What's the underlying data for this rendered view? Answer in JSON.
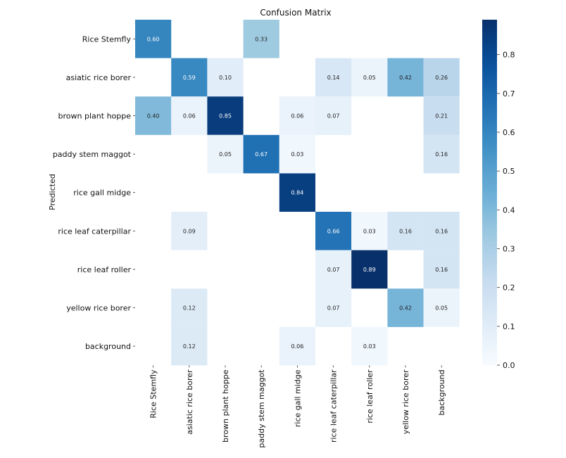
{
  "chart_data": {
    "type": "heatmap",
    "title": "Confusion Matrix",
    "xlabel": "",
    "ylabel": "Predicted",
    "x_categories": [
      "Rice Stemfly",
      "asiatic rice borer",
      "brown plant hoppe",
      "paddy stem maggot",
      "rice gall midge",
      "rice leaf caterpillar",
      "rice leaf roller",
      "yellow rice borer",
      "background"
    ],
    "y_categories": [
      "Rice Stemfly",
      "asiatic rice borer",
      "brown plant hoppe",
      "paddy stem maggot",
      "rice gall midge",
      "rice leaf caterpillar",
      "rice leaf roller",
      "yellow rice borer",
      "background"
    ],
    "values": [
      [
        0.6,
        null,
        null,
        0.33,
        null,
        null,
        null,
        null,
        null
      ],
      [
        null,
        0.59,
        0.1,
        null,
        null,
        0.14,
        0.05,
        0.42,
        0.26
      ],
      [
        0.4,
        0.06,
        0.85,
        null,
        0.06,
        0.07,
        null,
        null,
        0.21
      ],
      [
        null,
        null,
        0.05,
        0.67,
        0.03,
        null,
        null,
        null,
        0.16
      ],
      [
        null,
        null,
        null,
        null,
        0.84,
        null,
        null,
        null,
        null
      ],
      [
        null,
        0.09,
        null,
        null,
        null,
        0.66,
        0.03,
        0.16,
        0.16
      ],
      [
        null,
        null,
        null,
        null,
        null,
        0.07,
        0.89,
        null,
        0.16
      ],
      [
        null,
        0.12,
        null,
        null,
        null,
        0.07,
        null,
        0.42,
        0.05
      ],
      [
        null,
        0.12,
        null,
        null,
        0.06,
        null,
        0.03,
        null,
        null
      ]
    ],
    "labels": [
      [
        "0.60",
        "",
        "",
        "0.33",
        "",
        "",
        "",
        "",
        ""
      ],
      [
        "",
        "0.59",
        "0.10",
        "",
        "",
        "0.14",
        "0.05",
        "0.42",
        "0.26"
      ],
      [
        "0.40",
        "0.06",
        "0.85",
        "",
        "0.06",
        "0.07",
        "",
        "",
        "0.21"
      ],
      [
        "",
        "",
        "0.05",
        "0.67",
        "0.03",
        "",
        "",
        "",
        "0.16"
      ],
      [
        "",
        "",
        "",
        "",
        "0.84",
        "",
        "",
        "",
        ""
      ],
      [
        "",
        "0.09",
        "",
        "",
        "",
        "0.66",
        "0.03",
        "0.16",
        "0.16"
      ],
      [
        "",
        "",
        "",
        "",
        "",
        "0.07",
        "0.89",
        "",
        "0.16"
      ],
      [
        "",
        "0.12",
        "",
        "",
        "",
        "0.07",
        "",
        "0.42",
        "0.05"
      ],
      [
        "",
        "0.12",
        "",
        "",
        "0.06",
        "",
        "0.03",
        "",
        ""
      ]
    ],
    "colorbar": {
      "range": [
        0.0,
        0.89
      ],
      "ticks": [
        "0.0",
        "0.1",
        "0.2",
        "0.3",
        "0.4",
        "0.5",
        "0.6",
        "0.7",
        "0.8"
      ],
      "colormap": "Blues"
    },
    "grid": false
  }
}
